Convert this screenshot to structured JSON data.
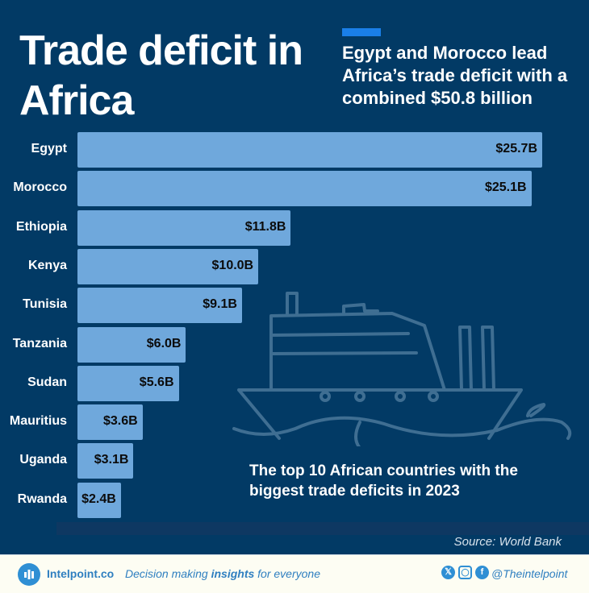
{
  "header": {
    "title": "Trade deficit in Africa",
    "subtitle": "Egypt and Morocco lead Africa’s trade deficit with a combined $50.8 billion",
    "accent_color": "#1a7fe8"
  },
  "chart_data": {
    "type": "bar",
    "orientation": "horizontal",
    "categories": [
      "Egypt",
      "Morocco",
      "Ethiopia",
      "Kenya",
      "Tunisia",
      "Tanzania",
      "Sudan",
      "Mauritius",
      "Uganda",
      "Rwanda"
    ],
    "values": [
      25.7,
      25.1,
      11.8,
      10.0,
      9.1,
      6.0,
      5.6,
      3.6,
      3.1,
      2.4
    ],
    "data_labels": [
      "$25.7B",
      "$25.1B",
      "$11.8B",
      "$10.0B",
      "$9.1B",
      "$6.0B",
      "$5.6B",
      "$3.6B",
      "$3.1B",
      "$2.4B"
    ],
    "unit": "billion USD",
    "bar_color": "#6fa8dc",
    "grid": false
  },
  "note": "The top 10 African countries with the biggest trade deficits in 2023",
  "source": "Source: World Bank",
  "footer": {
    "brand": "Intelpoint.co",
    "tagline_pre": "Decision making ",
    "tagline_bold": "insights",
    "tagline_post": " for everyone",
    "handle": "@Theintelpoint",
    "social_icons": [
      "x-icon",
      "instagram-icon",
      "facebook-icon"
    ]
  }
}
